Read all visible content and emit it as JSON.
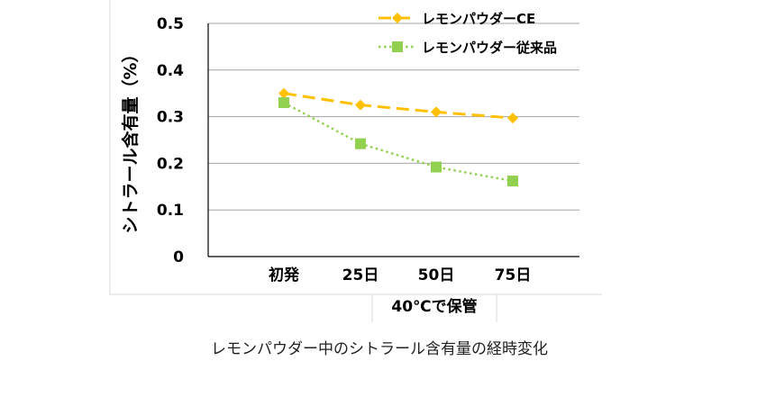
{
  "chart_data": {
    "type": "line",
    "title": "",
    "ylabel": "シトラール含有量（%）",
    "xlabel": "40℃で保管",
    "categories": [
      "初発",
      "25日",
      "50日",
      "75日"
    ],
    "ylim": [
      0,
      0.5
    ],
    "yticks": [
      "0",
      "0.1",
      "0.2",
      "0.3",
      "0.4",
      "0.5"
    ],
    "ytick_values": [
      0,
      0.1,
      0.2,
      0.3,
      0.4,
      0.5
    ],
    "grid": true,
    "legend_position": "top-right",
    "series": [
      {
        "name": "レモンパウダーCE",
        "values": [
          0.35,
          0.325,
          0.31,
          0.297
        ],
        "color": "#FFC000",
        "marker": "diamond",
        "line": "dashed"
      },
      {
        "name": "レモンパウダー従来品",
        "values": [
          0.33,
          0.242,
          0.192,
          0.162
        ],
        "color": "#92D050",
        "marker": "square",
        "line": "dotted"
      }
    ]
  },
  "caption": "レモンパウダー中のシトラール含有量の経時変化"
}
